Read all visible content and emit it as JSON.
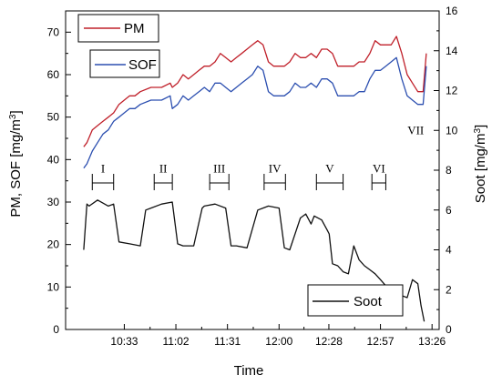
{
  "chart_data": {
    "type": "line",
    "xlabel": "Time",
    "ylabel": "PM, SOF [mg/m³]",
    "ylabel_parts": {
      "before": "PM, SOF [mg/m",
      "sup": "3",
      "after": "]"
    },
    "y2label": "Soot [mg/m³]",
    "y2label_parts": {
      "before": "Soot [mg/m",
      "sup": "3",
      "after": "]"
    },
    "x_start": "10:10",
    "x_end": "13:23",
    "xlim": [
      10.0,
      13.5
    ],
    "xticks": [
      10.55,
      11.0333,
      11.5167,
      12.0,
      12.4667,
      12.95,
      13.4333
    ],
    "xtick_labels": [
      "10:33",
      "11:02",
      "11:31",
      "12:00",
      "12:28",
      "12:57",
      "13:26"
    ],
    "ylim": [
      0,
      75
    ],
    "yticks": [
      0,
      10,
      20,
      30,
      40,
      50,
      60,
      70
    ],
    "y2lim": [
      0,
      16
    ],
    "y2ticks": [
      0,
      2,
      4,
      6,
      8,
      10,
      12,
      14,
      16
    ],
    "series": [
      {
        "name": "PM",
        "axis": "left",
        "color": "#c0202a",
        "x": [
          10.17,
          10.2,
          10.25,
          10.3,
          10.35,
          10.4,
          10.45,
          10.5,
          10.55,
          10.6,
          10.65,
          10.7,
          10.8,
          10.9,
          10.98,
          11.0,
          11.05,
          11.1,
          11.15,
          11.2,
          11.25,
          11.3,
          11.35,
          11.4,
          11.45,
          11.5,
          11.55,
          11.6,
          11.65,
          11.7,
          11.75,
          11.8,
          11.85,
          11.9,
          11.95,
          12.0,
          12.05,
          12.1,
          12.15,
          12.2,
          12.25,
          12.3,
          12.35,
          12.4,
          12.45,
          12.5,
          12.55,
          12.6,
          12.65,
          12.7,
          12.75,
          12.8,
          12.85,
          12.9,
          12.95,
          13.0,
          13.05,
          13.1,
          13.15,
          13.2,
          13.25,
          13.3,
          13.35,
          13.38
        ],
        "values": [
          43,
          44,
          47,
          48,
          49,
          50,
          51,
          53,
          54,
          55,
          55,
          56,
          57,
          57,
          58,
          57,
          58,
          60,
          59,
          60,
          61,
          62,
          62,
          63,
          65,
          64,
          63,
          64,
          65,
          66,
          67,
          68,
          67,
          63,
          62,
          62,
          62,
          63,
          65,
          64,
          64,
          65,
          64,
          66,
          66,
          65,
          62,
          62,
          62,
          62,
          63,
          63,
          65,
          68,
          67,
          67,
          67,
          69,
          65,
          60,
          58,
          56,
          56,
          65
        ]
      },
      {
        "name": "SOF",
        "axis": "left",
        "color": "#2c4fb0",
        "x": [
          10.17,
          10.2,
          10.25,
          10.3,
          10.35,
          10.4,
          10.45,
          10.5,
          10.55,
          10.6,
          10.65,
          10.7,
          10.8,
          10.9,
          10.98,
          11.0,
          11.05,
          11.1,
          11.15,
          11.2,
          11.25,
          11.3,
          11.35,
          11.4,
          11.45,
          11.5,
          11.55,
          11.6,
          11.65,
          11.7,
          11.75,
          11.8,
          11.85,
          11.9,
          11.95,
          12.0,
          12.05,
          12.1,
          12.15,
          12.2,
          12.25,
          12.3,
          12.35,
          12.4,
          12.45,
          12.5,
          12.55,
          12.6,
          12.65,
          12.7,
          12.75,
          12.8,
          12.85,
          12.9,
          12.95,
          13.0,
          13.05,
          13.1,
          13.15,
          13.2,
          13.25,
          13.3,
          13.35,
          13.38
        ],
        "values": [
          38,
          39,
          42,
          44,
          46,
          47,
          49,
          50,
          51,
          52,
          52,
          53,
          54,
          54,
          55,
          52,
          53,
          55,
          54,
          55,
          56,
          57,
          56,
          58,
          58,
          57,
          56,
          57,
          58,
          59,
          60,
          62,
          61,
          56,
          55,
          55,
          55,
          56,
          58,
          57,
          57,
          58,
          57,
          59,
          59,
          58,
          55,
          55,
          55,
          55,
          56,
          56,
          59,
          61,
          61,
          62,
          63,
          64,
          59,
          55,
          54,
          53,
          53,
          62
        ]
      },
      {
        "name": "Soot",
        "axis": "right",
        "color": "#111111",
        "x": [
          10.17,
          10.2,
          10.22,
          10.3,
          10.4,
          10.45,
          10.5,
          10.6,
          10.7,
          10.75,
          10.8,
          10.9,
          11.0,
          11.05,
          11.1,
          11.2,
          11.28,
          11.3,
          11.4,
          11.5,
          11.55,
          11.6,
          11.7,
          11.8,
          11.85,
          11.9,
          12.0,
          12.05,
          12.1,
          12.2,
          12.25,
          12.3,
          12.33,
          12.4,
          12.45,
          12.47,
          12.5,
          12.55,
          12.6,
          12.65,
          12.7,
          12.75,
          12.8,
          12.85,
          12.9,
          12.95,
          13.0,
          13.05,
          13.1,
          13.15,
          13.2,
          13.25,
          13.3,
          13.33,
          13.36
        ],
        "values": [
          4.0,
          6.3,
          6.2,
          6.5,
          6.2,
          6.3,
          4.4,
          4.3,
          4.2,
          6.0,
          6.1,
          6.3,
          6.4,
          4.3,
          4.2,
          4.2,
          6.1,
          6.2,
          6.3,
          6.1,
          4.2,
          4.2,
          4.1,
          6.0,
          6.1,
          6.2,
          6.1,
          4.1,
          4.0,
          5.6,
          5.8,
          5.3,
          5.7,
          5.5,
          5.0,
          4.8,
          3.3,
          3.2,
          2.9,
          2.8,
          4.2,
          3.5,
          3.2,
          3.0,
          2.8,
          2.5,
          2.2,
          1.8,
          1.7,
          1.7,
          1.6,
          2.5,
          2.3,
          1.2,
          0.4
        ]
      }
    ],
    "phases": [
      {
        "label": "I",
        "x1": 10.25,
        "x2": 10.45
      },
      {
        "label": "II",
        "x1": 10.83,
        "x2": 11.0
      },
      {
        "label": "III",
        "x1": 11.35,
        "x2": 11.53
      },
      {
        "label": "IV",
        "x1": 11.86,
        "x2": 12.06
      },
      {
        "label": "V",
        "x1": 12.35,
        "x2": 12.6
      },
      {
        "label": "VI",
        "x1": 12.87,
        "x2": 13.0
      }
    ],
    "extra_labels": [
      {
        "text": "VII",
        "x": 13.28,
        "y": 46
      }
    ],
    "legend": {
      "top": [
        "PM",
        "SOF"
      ],
      "bottom": [
        "Soot"
      ]
    }
  }
}
